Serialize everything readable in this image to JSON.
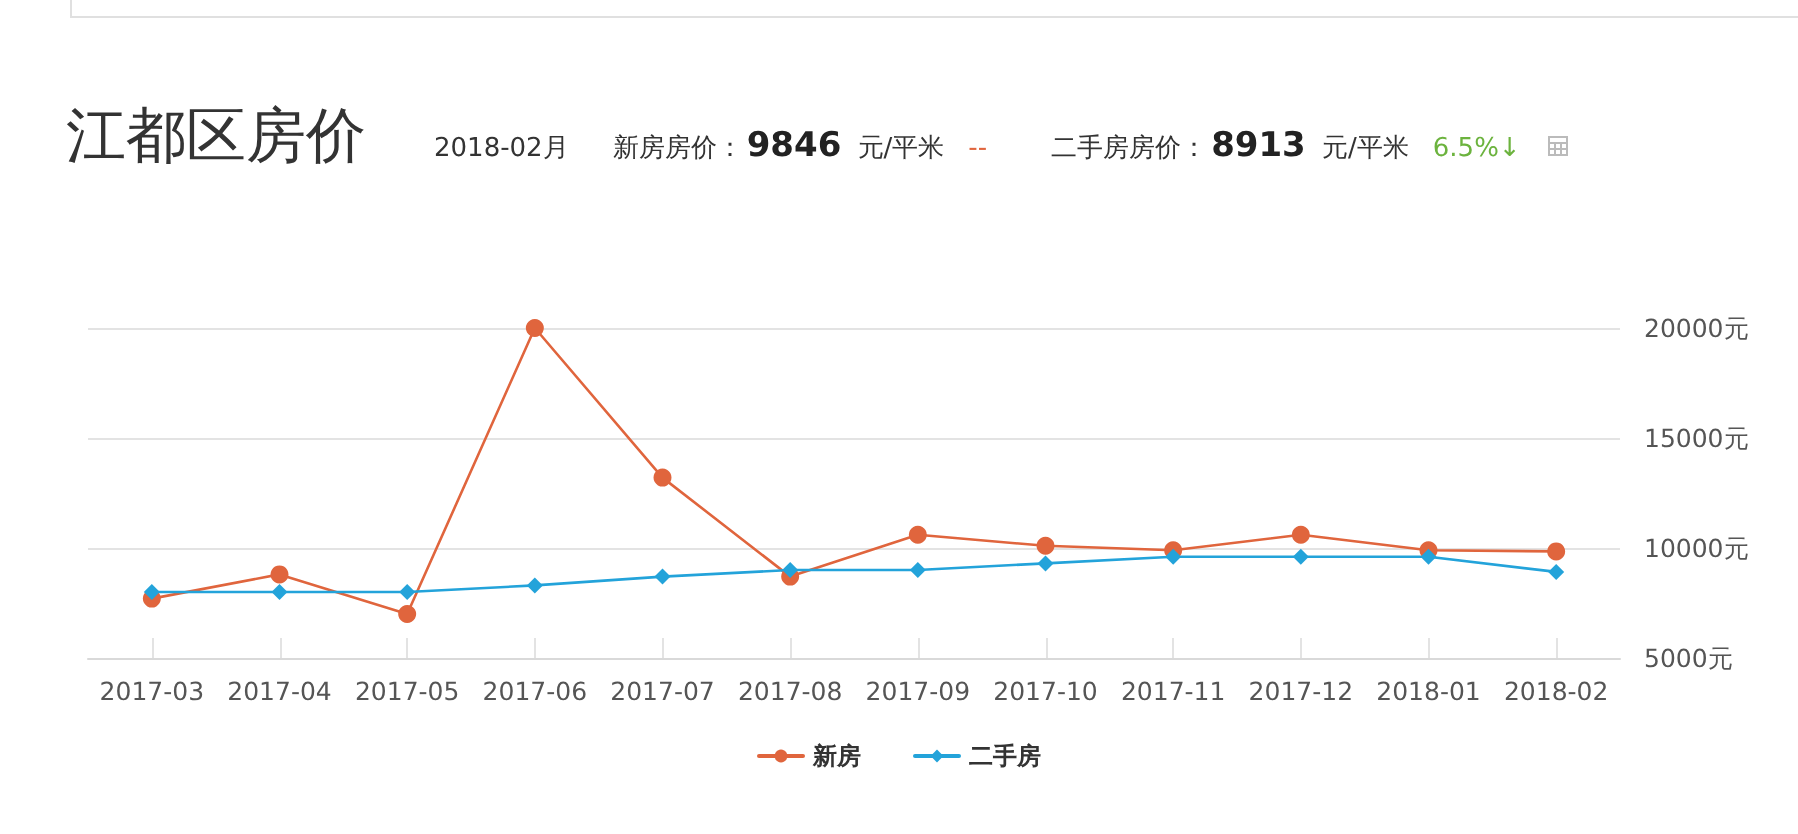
{
  "chart_data": {
    "type": "line",
    "title": "江都区房价",
    "subtitle": "2018-02月",
    "annotations": [
      "新房房价：9846 元/平米",
      "--",
      "二手房房价：8913 元/平米",
      "6.5%↓"
    ],
    "categories": [
      "2017-03",
      "2017-04",
      "2017-05",
      "2017-06",
      "2017-07",
      "2017-08",
      "2017-09",
      "2017-10",
      "2017-11",
      "2017-12",
      "2018-01",
      "2018-02"
    ],
    "series": [
      {
        "name": "新房",
        "color": "#e0653d",
        "marker": "circle",
        "values": [
          7700,
          8800,
          7000,
          20000,
          13200,
          8700,
          10600,
          10100,
          9900,
          10600,
          9900,
          9846
        ]
      },
      {
        "name": "二手房",
        "color": "#23a3da",
        "marker": "diamond",
        "values": [
          8000,
          8000,
          8000,
          8300,
          8700,
          9000,
          9000,
          9300,
          9600,
          9600,
          9600,
          8913
        ]
      }
    ],
    "ylim": [
      5000,
      20000
    ],
    "yticks": [
      {
        "value": 5000,
        "label": "5000元"
      },
      {
        "value": 10000,
        "label": "10000元"
      },
      {
        "value": 15000,
        "label": "15000元"
      },
      {
        "value": 20000,
        "label": "20000元"
      }
    ],
    "grid": "y",
    "legend": "bottom",
    "line_style": "solid"
  }
}
